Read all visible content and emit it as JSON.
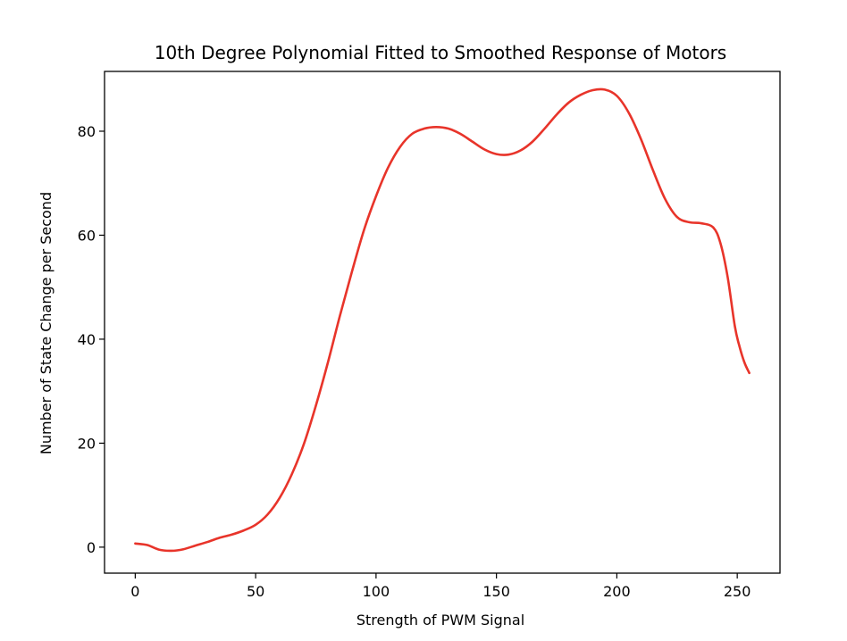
{
  "chart_data": {
    "type": "line",
    "title": "10th Degree Polynomial Fitted to Smoothed Response of Motors",
    "xlabel": "Strength of PWM Signal",
    "ylabel": "Number of State Change per Second",
    "xlim": [
      -12.75,
      267.75
    ],
    "ylim": [
      -5,
      91.5
    ],
    "xticks": [
      0,
      50,
      100,
      150,
      200,
      250
    ],
    "yticks": [
      0,
      20,
      40,
      60,
      80
    ],
    "grid": false,
    "legend": "none",
    "series": [
      {
        "color": "#e8342a",
        "x": [
          0,
          5,
          10,
          15,
          20,
          25,
          30,
          35,
          40,
          45,
          50,
          55,
          60,
          65,
          70,
          75,
          80,
          85,
          90,
          95,
          100,
          105,
          110,
          115,
          120,
          125,
          130,
          135,
          140,
          145,
          150,
          155,
          160,
          165,
          170,
          175,
          180,
          185,
          190,
          195,
          200,
          205,
          210,
          215,
          220,
          225,
          230,
          235,
          240,
          243,
          246,
          249,
          251,
          253,
          255
        ],
        "y": [
          0.7,
          0.4,
          -0.5,
          -0.7,
          -0.4,
          0.3,
          1.0,
          1.8,
          2.4,
          3.2,
          4.3,
          6.3,
          9.5,
          14.0,
          19.8,
          27.2,
          35.5,
          44.5,
          53.0,
          61.0,
          67.5,
          73.0,
          77.0,
          79.5,
          80.5,
          80.8,
          80.5,
          79.5,
          78.0,
          76.5,
          75.6,
          75.5,
          76.3,
          78.0,
          80.5,
          83.2,
          85.5,
          87.0,
          87.9,
          88.0,
          86.8,
          83.5,
          78.5,
          72.5,
          67.0,
          63.5,
          62.5,
          62.3,
          61.5,
          58.5,
          52.0,
          42.5,
          38.5,
          35.5,
          33.5
        ]
      }
    ]
  }
}
